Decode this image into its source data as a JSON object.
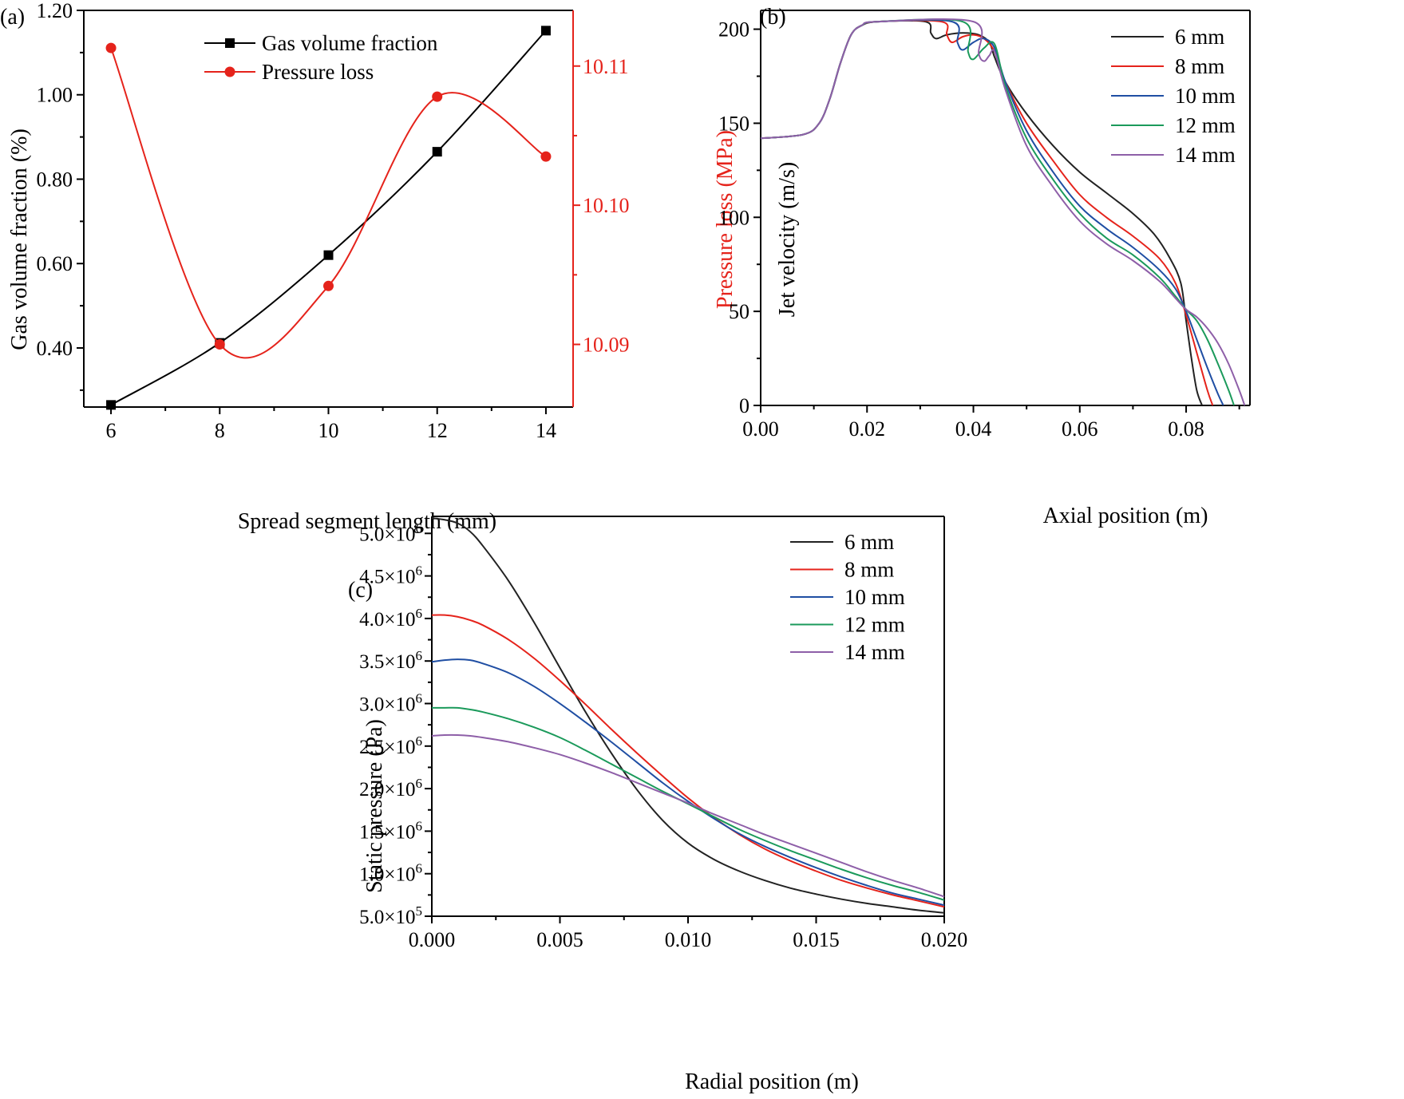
{
  "chart_data": [
    {
      "type": "line",
      "panel_label": "(a)",
      "xlabel": "Spread segment length (mm)",
      "ylabel": "Gas volume fraction (%)",
      "ylabel_right": "Pressure loss (MPa)",
      "xlim": [
        5.5,
        14.5
      ],
      "ylim": [
        0.26,
        1.2
      ],
      "ylim_right": [
        10.0855,
        10.114
      ],
      "x_ticks": [
        6,
        8,
        10,
        12,
        14
      ],
      "y_ticks": [
        "0.40",
        "0.60",
        "0.80",
        "1.00",
        "1.20"
      ],
      "y_right_ticks": [
        "10.09",
        "10.10",
        "10.11"
      ],
      "legend_position": "top",
      "colors": {
        "gas": "#000000",
        "pressure": "#e5231b"
      },
      "series": [
        {
          "name": "Gas volume fraction",
          "axis": "left",
          "marker": "square",
          "x": [
            6,
            8,
            10,
            12,
            14
          ],
          "values": [
            0.265,
            0.412,
            0.62,
            0.865,
            1.152
          ]
        },
        {
          "name": "Pressure loss",
          "axis": "right",
          "marker": "circle",
          "x": [
            6,
            8,
            10,
            12,
            14
          ],
          "values": [
            10.1113,
            10.09,
            10.0942,
            10.1078,
            10.1035
          ]
        }
      ]
    },
    {
      "type": "line",
      "panel_label": "(b)",
      "xlabel": "Axial position (m)",
      "ylabel": "Jet velocity (m/s)",
      "xlim": [
        0,
        0.092
      ],
      "ylim": [
        0,
        210
      ],
      "x_ticks": [
        "0.00",
        "0.02",
        "0.04",
        "0.06",
        "0.08"
      ],
      "y_ticks": [
        "0",
        "50",
        "100",
        "150",
        "200"
      ],
      "legend_position": "top-right",
      "series": [
        {
          "name": "6 mm",
          "color": "#222222",
          "x": [
            0,
            0.008,
            0.011,
            0.013,
            0.015,
            0.017,
            0.019,
            0.022,
            0.031,
            0.032,
            0.033,
            0.035,
            0.038,
            0.041,
            0.043,
            0.044,
            0.046,
            0.05,
            0.055,
            0.06,
            0.065,
            0.07,
            0.074,
            0.077,
            0.079,
            0.08,
            0.081,
            0.082,
            0.083
          ],
          "values": [
            142,
            144,
            150,
            163,
            182,
            197,
            202,
            204,
            204,
            198,
            195,
            197,
            198,
            197,
            193,
            185,
            172,
            155,
            138,
            124,
            113,
            102,
            91,
            78,
            65,
            45,
            25,
            8,
            0
          ]
        },
        {
          "name": "8 mm",
          "color": "#e5231b",
          "x": [
            0,
            0.008,
            0.011,
            0.013,
            0.015,
            0.017,
            0.019,
            0.022,
            0.034,
            0.035,
            0.036,
            0.038,
            0.04,
            0.042,
            0.044,
            0.046,
            0.05,
            0.055,
            0.06,
            0.065,
            0.07,
            0.075,
            0.078,
            0.08,
            0.082,
            0.084,
            0.085
          ],
          "values": [
            142,
            144,
            150,
            163,
            182,
            197,
            202,
            204,
            204,
            197,
            193,
            196,
            197,
            195,
            188,
            172,
            150,
            130,
            112,
            100,
            90,
            78,
            65,
            48,
            28,
            8,
            0
          ]
        },
        {
          "name": "10 mm",
          "color": "#1f4ea3",
          "x": [
            0,
            0.008,
            0.011,
            0.013,
            0.015,
            0.017,
            0.019,
            0.022,
            0.036,
            0.037,
            0.038,
            0.04,
            0.042,
            0.044,
            0.046,
            0.05,
            0.055,
            0.06,
            0.065,
            0.07,
            0.075,
            0.078,
            0.08,
            0.082,
            0.084,
            0.086,
            0.087
          ],
          "values": [
            142,
            144,
            150,
            163,
            182,
            197,
            202,
            204,
            204,
            193,
            189,
            193,
            195,
            190,
            172,
            146,
            124,
            106,
            94,
            84,
            72,
            62,
            50,
            35,
            20,
            6,
            0
          ]
        },
        {
          "name": "12 mm",
          "color": "#1b9a5b",
          "x": [
            0,
            0.008,
            0.011,
            0.013,
            0.015,
            0.017,
            0.019,
            0.022,
            0.038,
            0.039,
            0.04,
            0.042,
            0.044,
            0.046,
            0.05,
            0.055,
            0.06,
            0.065,
            0.07,
            0.075,
            0.078,
            0.08,
            0.082,
            0.084,
            0.086,
            0.088,
            0.089
          ],
          "values": [
            142,
            144,
            150,
            163,
            182,
            197,
            202,
            204,
            204,
            188,
            184,
            190,
            192,
            170,
            142,
            120,
            102,
            89,
            80,
            68,
            58,
            51,
            45,
            35,
            22,
            8,
            0
          ]
        },
        {
          "name": "14 mm",
          "color": "#8e5fa8",
          "x": [
            0,
            0.008,
            0.011,
            0.013,
            0.015,
            0.017,
            0.019,
            0.022,
            0.04,
            0.041,
            0.042,
            0.043,
            0.044,
            0.046,
            0.05,
            0.055,
            0.06,
            0.065,
            0.07,
            0.075,
            0.078,
            0.08,
            0.082,
            0.084,
            0.086,
            0.088,
            0.09,
            0.091
          ],
          "values": [
            142,
            144,
            150,
            163,
            182,
            197,
            202,
            204,
            204,
            187,
            183,
            186,
            188,
            168,
            138,
            116,
            98,
            86,
            77,
            66,
            57,
            51,
            47,
            41,
            33,
            22,
            8,
            0
          ]
        }
      ]
    },
    {
      "type": "line",
      "panel_label": "(c)",
      "xlabel": "Radial position (m)",
      "ylabel": "Static pressure (Pa)",
      "xlim": [
        0,
        0.02
      ],
      "ylim": [
        500000,
        5200000
      ],
      "x_ticks": [
        "0.000",
        "0.005",
        "0.010",
        "0.015",
        "0.020"
      ],
      "y_ticks": [
        {
          "mantissa": "5.0",
          "exponent": "5"
        },
        {
          "mantissa": "1.0",
          "exponent": "6"
        },
        {
          "mantissa": "1.5",
          "exponent": "6"
        },
        {
          "mantissa": "2.0",
          "exponent": "6"
        },
        {
          "mantissa": "2.5",
          "exponent": "6"
        },
        {
          "mantissa": "3.0",
          "exponent": "6"
        },
        {
          "mantissa": "3.5",
          "exponent": "6"
        },
        {
          "mantissa": "4.0",
          "exponent": "6"
        },
        {
          "mantissa": "4.5",
          "exponent": "6"
        },
        {
          "mantissa": "5.0",
          "exponent": "6"
        }
      ],
      "legend_position": "top-right",
      "series": [
        {
          "name": "6 mm",
          "color": "#222222",
          "x": [
            0,
            0.0005,
            0.001,
            0.0015,
            0.002,
            0.003,
            0.004,
            0.005,
            0.006,
            0.007,
            0.008,
            0.009,
            0.01,
            0.011,
            0.012,
            0.013,
            0.014,
            0.015,
            0.016,
            0.017,
            0.018,
            0.019,
            0.02
          ],
          "values": [
            5180000,
            5160000,
            5120000,
            5020000,
            4850000,
            4440000,
            3950000,
            3420000,
            2900000,
            2420000,
            1990000,
            1630000,
            1360000,
            1170000,
            1030000,
            920000,
            830000,
            760000,
            700000,
            650000,
            610000,
            570000,
            540000
          ]
        },
        {
          "name": "8 mm",
          "color": "#e5231b",
          "x": [
            0,
            0.0005,
            0.001,
            0.0015,
            0.002,
            0.003,
            0.004,
            0.005,
            0.006,
            0.007,
            0.008,
            0.009,
            0.01,
            0.011,
            0.012,
            0.013,
            0.014,
            0.015,
            0.016,
            0.017,
            0.018,
            0.019,
            0.02
          ],
          "values": [
            4040000,
            4040000,
            4020000,
            3980000,
            3920000,
            3750000,
            3530000,
            3270000,
            2990000,
            2700000,
            2420000,
            2150000,
            1890000,
            1660000,
            1460000,
            1290000,
            1150000,
            1030000,
            920000,
            830000,
            750000,
            680000,
            610000
          ]
        },
        {
          "name": "10 mm",
          "color": "#1f4ea3",
          "x": [
            0,
            0.0005,
            0.001,
            0.0015,
            0.002,
            0.003,
            0.004,
            0.005,
            0.006,
            0.007,
            0.008,
            0.009,
            0.01,
            0.011,
            0.012,
            0.013,
            0.014,
            0.015,
            0.016,
            0.017,
            0.018,
            0.019,
            0.02
          ],
          "values": [
            3490000,
            3510000,
            3520000,
            3510000,
            3470000,
            3360000,
            3200000,
            3000000,
            2780000,
            2550000,
            2310000,
            2070000,
            1850000,
            1650000,
            1470000,
            1320000,
            1190000,
            1070000,
            960000,
            860000,
            770000,
            700000,
            630000
          ]
        },
        {
          "name": "12 mm",
          "color": "#1b9a5b",
          "x": [
            0,
            0.0005,
            0.001,
            0.0015,
            0.002,
            0.003,
            0.004,
            0.005,
            0.006,
            0.007,
            0.008,
            0.009,
            0.01,
            0.011,
            0.012,
            0.013,
            0.014,
            0.015,
            0.016,
            0.017,
            0.018,
            0.019,
            0.02
          ],
          "values": [
            2950000,
            2950000,
            2950000,
            2930000,
            2900000,
            2820000,
            2720000,
            2600000,
            2450000,
            2290000,
            2130000,
            1970000,
            1820000,
            1670000,
            1520000,
            1390000,
            1270000,
            1160000,
            1050000,
            950000,
            860000,
            780000,
            690000
          ]
        },
        {
          "name": "14 mm",
          "color": "#8e5fa8",
          "x": [
            0,
            0.0005,
            0.001,
            0.0015,
            0.002,
            0.003,
            0.004,
            0.005,
            0.006,
            0.007,
            0.008,
            0.009,
            0.01,
            0.011,
            0.012,
            0.013,
            0.014,
            0.015,
            0.016,
            0.017,
            0.018,
            0.019,
            0.02
          ],
          "values": [
            2620000,
            2630000,
            2630000,
            2620000,
            2600000,
            2550000,
            2480000,
            2400000,
            2300000,
            2190000,
            2070000,
            1950000,
            1830000,
            1700000,
            1580000,
            1460000,
            1350000,
            1240000,
            1130000,
            1020000,
            920000,
            830000,
            730000
          ]
        }
      ]
    }
  ]
}
